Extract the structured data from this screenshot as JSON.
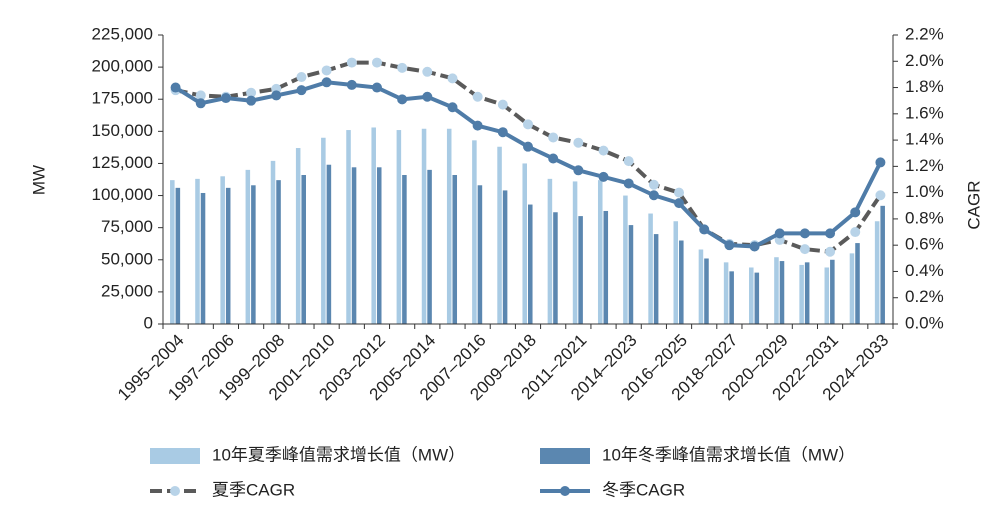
{
  "chart_data": {
    "type": "bar_line",
    "categories": [
      "1995–2004",
      null,
      "1997–2006",
      null,
      "1999–2008",
      null,
      "2001–2010",
      null,
      "2003–2012",
      null,
      "2005–2014",
      null,
      "2007–2016",
      null,
      "2009–2018",
      null,
      "2011–2021",
      null,
      "2014–2023",
      null,
      "2016–2025",
      null,
      "2018–2027",
      null,
      "2020–2029",
      null,
      "2022–2031",
      null,
      "2024–2033"
    ],
    "y_label": "MW",
    "y2_label": "CAGR",
    "ylim": [
      0,
      225000
    ],
    "yticks": [
      0,
      {
        "value": 25000,
        "label": "25,000"
      },
      {
        "value": 50000,
        "label": "50,000"
      },
      {
        "value": 75000,
        "label": "75,000"
      },
      {
        "value": 100000,
        "label": "100,000"
      },
      {
        "value": 125000,
        "label": "125,000"
      },
      {
        "value": 150000,
        "label": "150,000"
      },
      {
        "value": 175000,
        "label": "175,000"
      },
      {
        "value": 200000,
        "label": "200,000"
      },
      {
        "value": 225000,
        "label": "225,000"
      }
    ],
    "y2lim": [
      0,
      2.2
    ],
    "y2ticks": [
      {
        "value": 0,
        "label": "0.0%"
      },
      {
        "value": 0.2,
        "label": "0.2%"
      },
      {
        "value": 0.4,
        "label": "0.4%"
      },
      {
        "value": 0.6,
        "label": "0.6%"
      },
      {
        "value": 0.8,
        "label": "0.8%"
      },
      {
        "value": 1.0,
        "label": "1.0%"
      },
      {
        "value": 1.2,
        "label": "1.2%"
      },
      {
        "value": 1.4,
        "label": "1.4%"
      },
      {
        "value": 1.6,
        "label": "1.6%"
      },
      {
        "value": 1.8,
        "label": "1.8%"
      },
      {
        "value": 2.0,
        "label": "2.0%"
      },
      {
        "value": 2.2,
        "label": "2.2%"
      }
    ],
    "series": [
      {
        "name": "10年夏季峰值需求增长值（MW）",
        "kind": "bar",
        "color": "#a9cbe4",
        "values": [
          112000,
          113000,
          115000,
          120000,
          127000,
          137000,
          145000,
          151000,
          153000,
          151000,
          152000,
          152000,
          143000,
          138000,
          125000,
          113000,
          111000,
          112000,
          100000,
          86000,
          80000,
          58000,
          48000,
          44000,
          52000,
          46000,
          44000,
          55000,
          80000
        ]
      },
      {
        "name": "10年冬季峰值需求增长值（MW）",
        "kind": "bar",
        "color": "#5b87b0",
        "values": [
          106000,
          102000,
          106000,
          108000,
          112000,
          116000,
          124000,
          122000,
          122000,
          116000,
          120000,
          116000,
          108000,
          104000,
          93000,
          87000,
          84000,
          88000,
          77000,
          70000,
          65000,
          51000,
          41000,
          40000,
          49000,
          48000,
          50000,
          63000,
          92000
        ]
      },
      {
        "name": "夏季CAGR",
        "kind": "line",
        "axis": "y2",
        "color": "#5a5a5a",
        "marker_color": "#b8d3e8",
        "dashed": true,
        "values": [
          1.78,
          1.74,
          1.73,
          1.76,
          1.79,
          1.88,
          1.93,
          1.99,
          1.99,
          1.95,
          1.92,
          1.87,
          1.73,
          1.67,
          1.52,
          1.42,
          1.38,
          1.32,
          1.24,
          1.06,
          1.0,
          0.72,
          0.61,
          0.6,
          0.64,
          0.57,
          0.55,
          0.7,
          0.98
        ]
      },
      {
        "name": "冬季CAGR",
        "kind": "line",
        "axis": "y2",
        "color": "#4f7ca8",
        "marker_color": "#4f7ca8",
        "dashed": false,
        "values": [
          1.8,
          1.68,
          1.72,
          1.7,
          1.74,
          1.78,
          1.84,
          1.82,
          1.8,
          1.71,
          1.73,
          1.65,
          1.51,
          1.46,
          1.35,
          1.26,
          1.17,
          1.12,
          1.07,
          0.98,
          0.92,
          0.72,
          0.6,
          0.59,
          0.69,
          0.69,
          0.69,
          0.85,
          1.23
        ]
      }
    ]
  }
}
